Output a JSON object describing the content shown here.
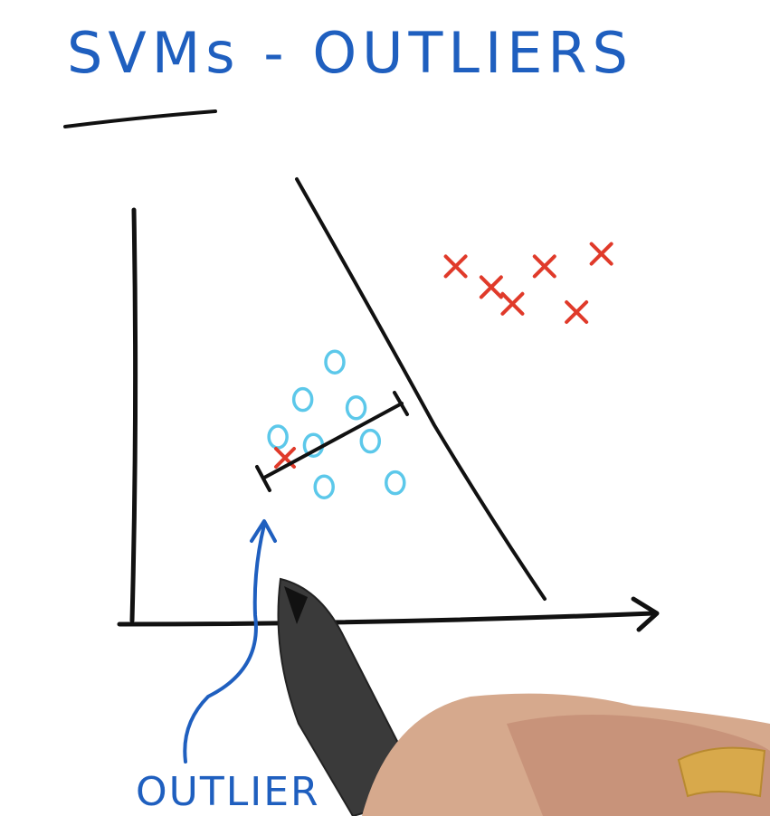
{
  "title": "SVMs - OUTLIERS",
  "label": "OUTLIER",
  "colors": {
    "title": "#1f5fbf",
    "ink": "#111111",
    "circle": "#5cc8ea",
    "cross": "#e03a2a",
    "arrow": "#1f5fbf"
  },
  "points": {
    "circles": [
      {
        "x": 0.56,
        "y": 0.63
      },
      {
        "x": 0.47,
        "y": 0.54
      },
      {
        "x": 0.62,
        "y": 0.52
      },
      {
        "x": 0.4,
        "y": 0.45
      },
      {
        "x": 0.5,
        "y": 0.43
      },
      {
        "x": 0.66,
        "y": 0.44
      },
      {
        "x": 0.53,
        "y": 0.33
      },
      {
        "x": 0.73,
        "y": 0.34
      }
    ],
    "crosses": [
      {
        "x": 0.9,
        "y": 0.86
      },
      {
        "x": 1.0,
        "y": 0.81
      },
      {
        "x": 1.15,
        "y": 0.86
      },
      {
        "x": 1.31,
        "y": 0.89
      },
      {
        "x": 1.06,
        "y": 0.77
      },
      {
        "x": 1.24,
        "y": 0.75
      }
    ],
    "outlier": {
      "x": 0.42,
      "y": 0.4
    }
  }
}
